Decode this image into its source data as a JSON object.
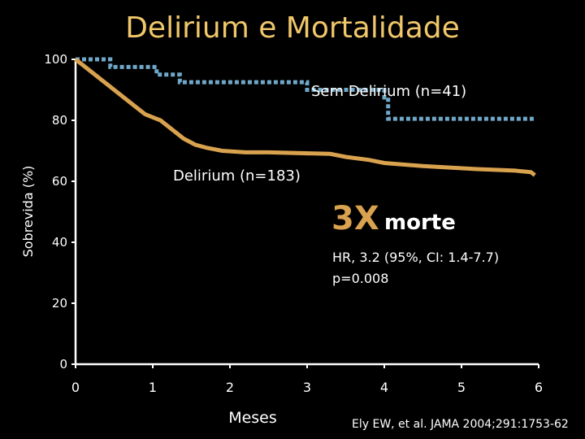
{
  "chart_data": {
    "type": "line",
    "title": "Delirium e Mortalidade",
    "xlabel": "Meses",
    "ylabel": "Sobrevida (%)",
    "xlim": [
      0,
      6
    ],
    "ylim": [
      0,
      100
    ],
    "x_ticks": [
      "0",
      "1",
      "2",
      "3",
      "4",
      "5",
      "6"
    ],
    "y_ticks": [
      "0",
      "20",
      "40",
      "60",
      "80",
      "100"
    ],
    "series": [
      {
        "name": "Sem Delirium (n=41)",
        "style": "dotted",
        "color": "#6fa8c8",
        "points": [
          [
            0,
            100
          ],
          [
            0.45,
            100
          ],
          [
            0.45,
            97.5
          ],
          [
            1.05,
            97.5
          ],
          [
            1.05,
            95
          ],
          [
            1.35,
            95
          ],
          [
            1.35,
            92.5
          ],
          [
            3,
            92.5
          ],
          [
            3,
            90
          ],
          [
            4,
            90
          ],
          [
            4,
            87.5
          ],
          [
            4.05,
            87.5
          ],
          [
            4.05,
            80.5
          ],
          [
            5.95,
            80.5
          ]
        ]
      },
      {
        "name": "Delirium (n=183)",
        "style": "solid",
        "color": "#d9a24e",
        "points": [
          [
            0,
            100
          ],
          [
            0.1,
            98
          ],
          [
            0.2,
            96
          ],
          [
            0.3,
            94
          ],
          [
            0.4,
            92
          ],
          [
            0.5,
            90
          ],
          [
            0.6,
            88
          ],
          [
            0.7,
            86
          ],
          [
            0.8,
            84
          ],
          [
            0.9,
            82
          ],
          [
            1.0,
            81
          ],
          [
            1.1,
            80
          ],
          [
            1.2,
            78
          ],
          [
            1.3,
            76
          ],
          [
            1.4,
            74
          ],
          [
            1.55,
            72
          ],
          [
            1.7,
            71
          ],
          [
            1.9,
            70
          ],
          [
            2.2,
            69.5
          ],
          [
            2.5,
            69.5
          ],
          [
            3.3,
            69
          ],
          [
            3.5,
            68
          ],
          [
            3.8,
            67
          ],
          [
            4.0,
            66
          ],
          [
            4.5,
            65
          ],
          [
            5.2,
            64
          ],
          [
            5.7,
            63.5
          ],
          [
            5.9,
            63
          ],
          [
            5.95,
            62
          ]
        ]
      }
    ],
    "annotations": {
      "sem_label": "Sem Delirium (n=41)",
      "delirium_label": "Delirium (n=183)",
      "risk_big": "3X",
      "risk_word": "morte",
      "hr": "HR, 3.2  (95%, CI: 1.4-7.7)",
      "p": "p=0.008"
    },
    "citation": "Ely EW, et al. JAMA 2004;291:1753-62"
  }
}
